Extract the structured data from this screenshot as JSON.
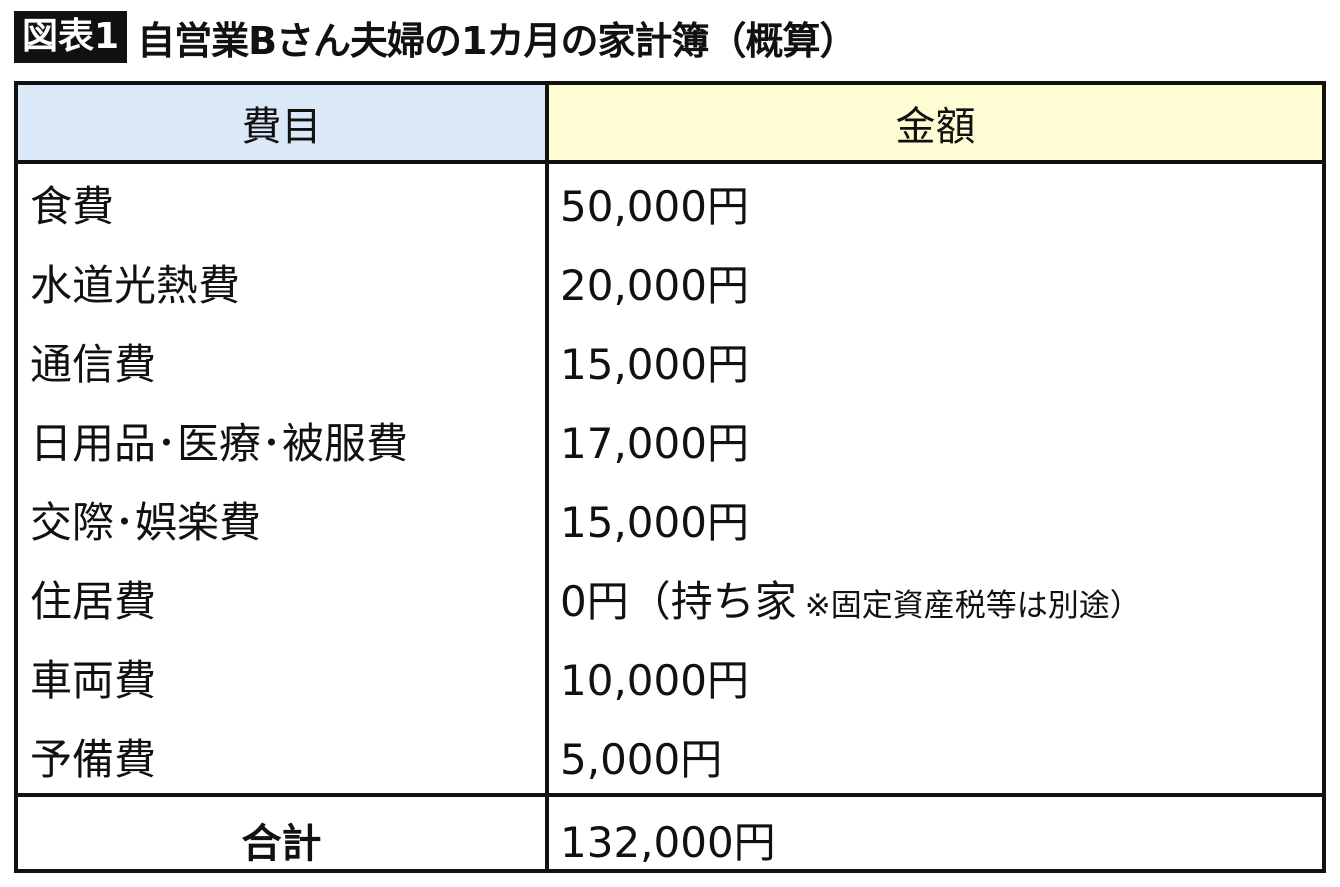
{
  "title": {
    "badge": "図表1",
    "text": "自営業Bさん夫婦の1カ月の家計簿（概算）"
  },
  "table": {
    "headers": [
      "費目",
      "金額"
    ],
    "rows": [
      {
        "item": "食費",
        "amount": "50,000円",
        "note": ""
      },
      {
        "item": "水道光熱費",
        "amount": "20,000円",
        "note": ""
      },
      {
        "item": "通信費",
        "amount": "15,000円",
        "note": ""
      },
      {
        "item": "日用品･医療･被服費",
        "amount": "17,000円",
        "note": ""
      },
      {
        "item": "交際･娯楽費",
        "amount": "15,000円",
        "note": ""
      },
      {
        "item": "住居費",
        "amount": "0円（持ち家",
        "note": "※固定資産税等は別途）"
      },
      {
        "item": "車両費",
        "amount": "10,000円",
        "note": ""
      },
      {
        "item": "予備費",
        "amount": "5,000円",
        "note": ""
      }
    ],
    "total": {
      "label": "合計",
      "amount": "132,000円"
    }
  },
  "colors": {
    "header_left": "#dae8f7",
    "header_right": "#fefcd2",
    "border": "#111111"
  }
}
